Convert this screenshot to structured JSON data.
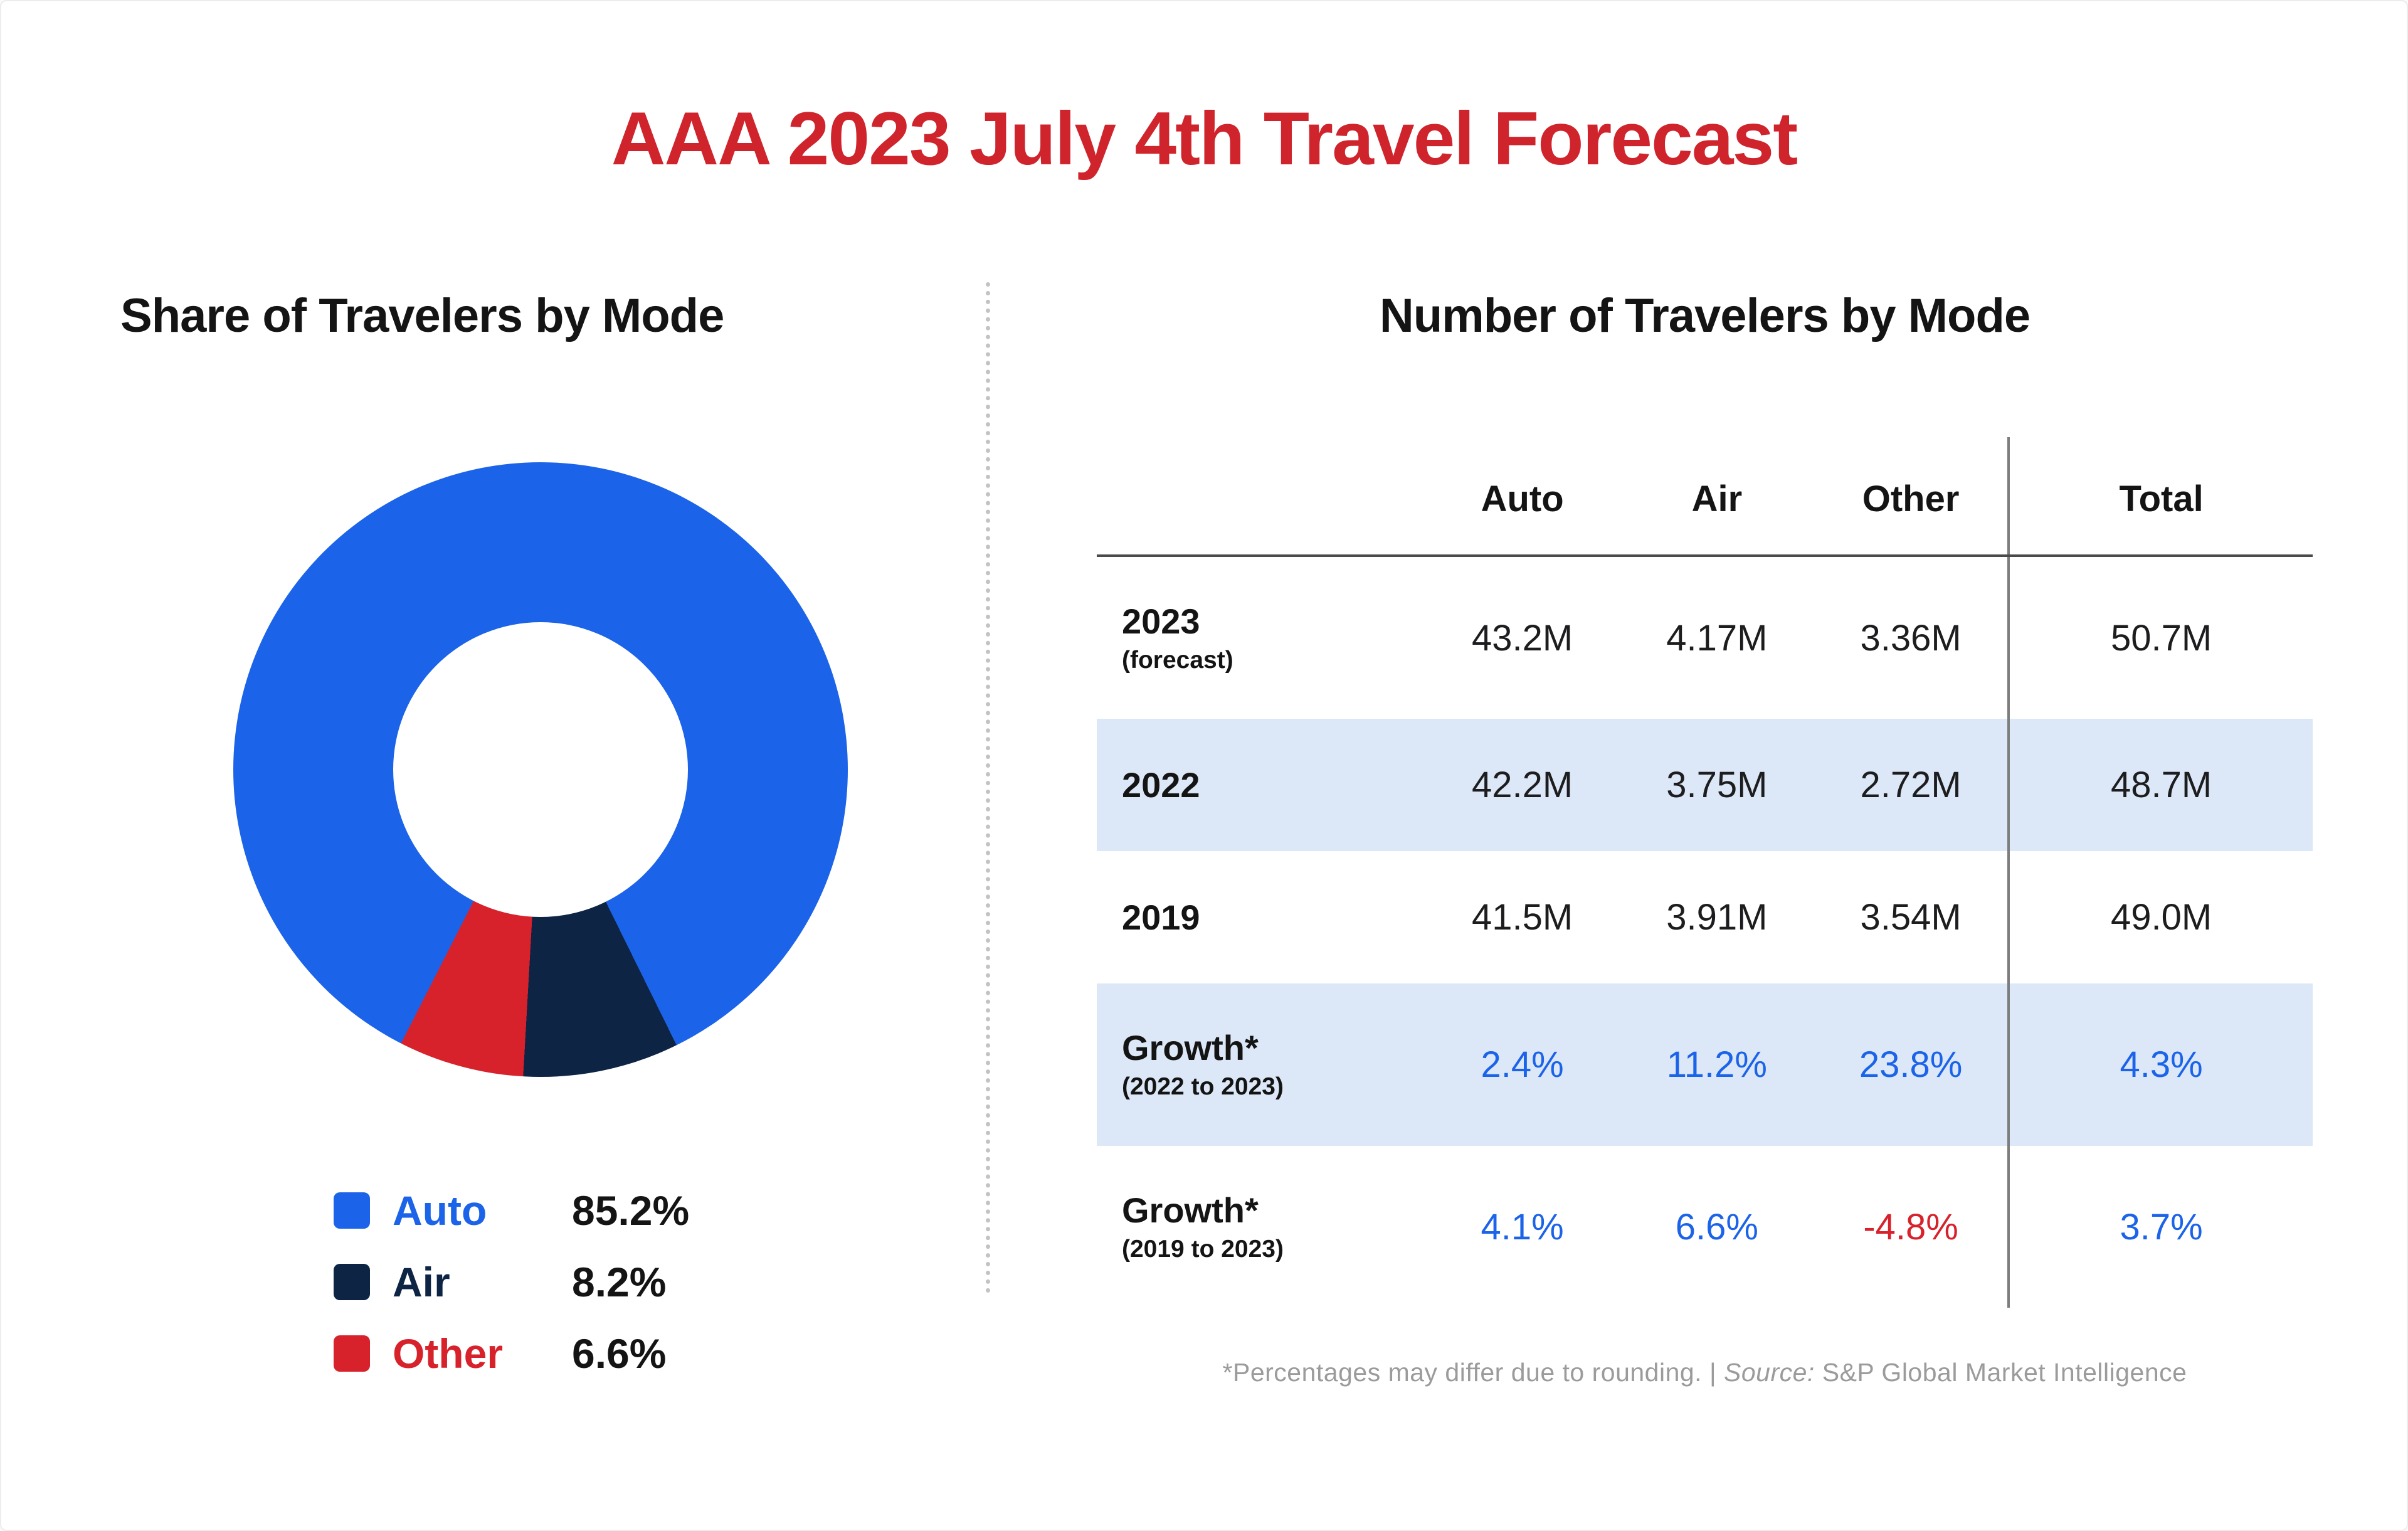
{
  "page": {
    "title": "AAA 2023 July 4th Travel Forecast"
  },
  "left": {
    "heading": "Share of Travelers by Mode",
    "legend": [
      {
        "label": "Auto",
        "value": "85.2%",
        "color": "#1b63e8"
      },
      {
        "label": "Air",
        "value": "8.2%",
        "color": "#0d2444"
      },
      {
        "label": "Other",
        "value": "6.6%",
        "color": "#d7212b"
      }
    ]
  },
  "right": {
    "heading": "Number of Travelers by Mode",
    "table": {
      "columns": [
        "Auto",
        "Air",
        "Other",
        "Total"
      ],
      "rows": [
        {
          "label": "2023",
          "sublabel": "(forecast)",
          "highlight": false,
          "cells": [
            {
              "text": "43.2M"
            },
            {
              "text": "4.17M"
            },
            {
              "text": "3.36M"
            },
            {
              "text": "50.7M"
            }
          ]
        },
        {
          "label": "2022",
          "sublabel": "",
          "highlight": true,
          "cells": [
            {
              "text": "42.2M"
            },
            {
              "text": "3.75M"
            },
            {
              "text": "2.72M"
            },
            {
              "text": "48.7M"
            }
          ]
        },
        {
          "label": "2019",
          "sublabel": "",
          "highlight": false,
          "cells": [
            {
              "text": "41.5M"
            },
            {
              "text": "3.91M"
            },
            {
              "text": "3.54M"
            },
            {
              "text": "49.0M"
            }
          ]
        },
        {
          "label": "Growth*",
          "sublabel": "(2022 to 2023)",
          "highlight": true,
          "cells": [
            {
              "text": "2.4%",
              "color": "#1b63e8"
            },
            {
              "text": "11.2%",
              "color": "#1b63e8"
            },
            {
              "text": "23.8%",
              "color": "#1b63e8"
            },
            {
              "text": "4.3%",
              "color": "#1b63e8"
            }
          ]
        },
        {
          "label": "Growth*",
          "sublabel": "(2019 to 2023)",
          "highlight": false,
          "cells": [
            {
              "text": "4.1%",
              "color": "#1b63e8"
            },
            {
              "text": "6.6%",
              "color": "#1b63e8"
            },
            {
              "text": "-4.8%",
              "color": "#d7212b"
            },
            {
              "text": "3.7%",
              "color": "#1b63e8"
            }
          ]
        }
      ]
    },
    "footnote": {
      "note": "*Percentages may differ due to rounding. ",
      "separator": "| ",
      "source_label": "Source:",
      "source_text": "S&P Global Market Intelligence"
    }
  },
  "chart_data": [
    {
      "type": "pie",
      "title": "Share of Travelers by Mode",
      "labels": [
        "Auto",
        "Air",
        "Other"
      ],
      "values": [
        85.2,
        8.2,
        6.6
      ],
      "colors": [
        "#1b63e8",
        "#0d2444",
        "#d7212b"
      ],
      "donut": true,
      "inner_radius_ratio": 0.48,
      "start_angle_deg": 207,
      "legend_position": "bottom"
    },
    {
      "type": "table",
      "title": "Number of Travelers by Mode",
      "columns": [
        "",
        "Auto",
        "Air",
        "Other",
        "Total"
      ],
      "rows": [
        [
          "2023 (forecast)",
          "43.2M",
          "4.17M",
          "3.36M",
          "50.7M"
        ],
        [
          "2022",
          "42.2M",
          "3.75M",
          "2.72M",
          "48.7M"
        ],
        [
          "2019",
          "41.5M",
          "3.91M",
          "3.54M",
          "49.0M"
        ],
        [
          "Growth* (2022 to 2023)",
          "2.4%",
          "11.2%",
          "23.8%",
          "4.3%"
        ],
        [
          "Growth* (2019 to 2023)",
          "4.1%",
          "6.6%",
          "-4.8%",
          "3.7%"
        ]
      ]
    }
  ]
}
